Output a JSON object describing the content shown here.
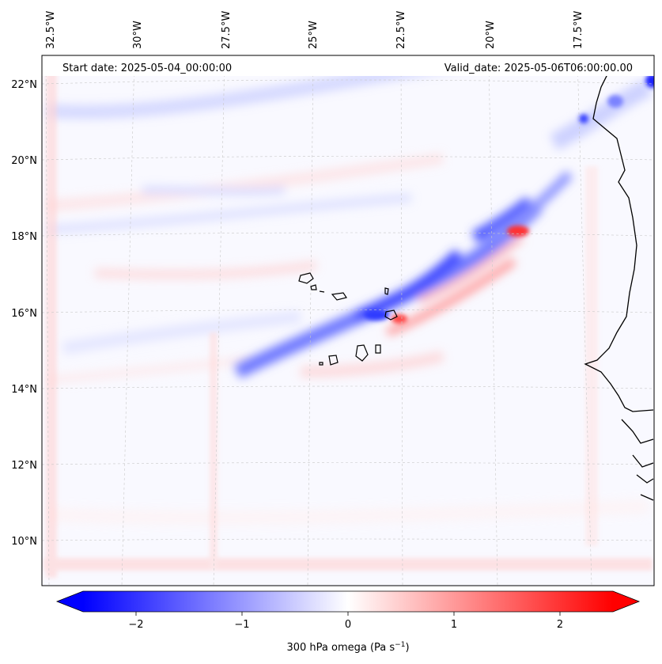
{
  "map": {
    "start_date_text": "Start date: 2025-05-04_00:00:00",
    "valid_date_text": "Valid_date: 2025-05-06T06:00:00.00",
    "lon_ticks": [
      "32.5°W",
      "30°W",
      "27.5°W",
      "25°W",
      "22.5°W",
      "20°W",
      "17.5°W"
    ],
    "lat_ticks": [
      "22°N",
      "20°N",
      "18°N",
      "16°N",
      "14°N",
      "12°N",
      "10°N"
    ],
    "extent": {
      "lon_min": -33,
      "lon_max": -15.4,
      "lat_min": 8.9,
      "lat_max": 22.7
    },
    "projection": "lambert-conformal-like (curved longitude lines)",
    "field": "300 hPa vertical velocity (omega)",
    "features": [
      "Cape Verde islands",
      "West African coastline",
      "diagonal band of negative omega from 14.5°N,27°W to 19°N,20°W"
    ]
  },
  "colorbar": {
    "label_prefix": "300 hPa omega (Pa s",
    "label_sup": "−1",
    "label_suffix": ")",
    "ticks": [
      "−2",
      "−1",
      "0",
      "1",
      "2"
    ],
    "tick_values": [
      -2,
      -1,
      0,
      1,
      2
    ],
    "range": [
      -2.5,
      2.5
    ],
    "extend": "both",
    "cmap": "bwr",
    "colors": {
      "min": "#0000ff",
      "mid": "#ffffff",
      "max": "#ff0000"
    }
  }
}
